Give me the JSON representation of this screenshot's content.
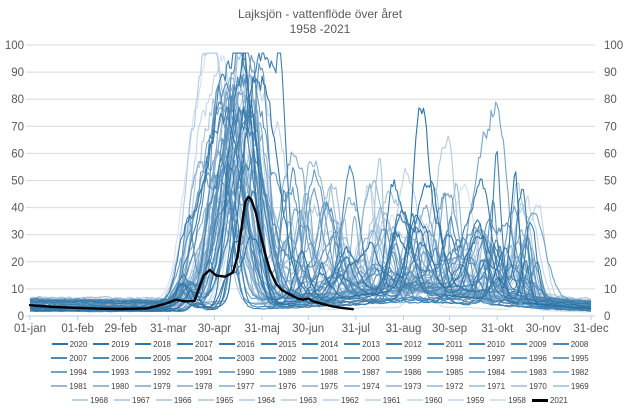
{
  "chart_data": {
    "type": "line",
    "title": "Lajksjön - vattenflöde över året",
    "subtitle": "1958 -2021",
    "xlabel": "",
    "ylabel": "",
    "ylim": [
      0,
      100
    ],
    "y_ticks": [
      0,
      10,
      20,
      30,
      40,
      50,
      60,
      70,
      80,
      90,
      100
    ],
    "dual_y_axis": true,
    "grid": "horizontal",
    "legend_position": "bottom",
    "x_tick_labels": [
      "01-jan",
      "01-feb",
      "29-feb",
      "31-mar",
      "30-apr",
      "31-maj",
      "30-jun",
      "31-jul",
      "31-aug",
      "30-sep",
      "31-okt",
      "30-nov",
      "31-dec"
    ],
    "x_tick_days": [
      0,
      31,
      59,
      90,
      120,
      151,
      181,
      212,
      243,
      273,
      304,
      334,
      365
    ],
    "x_range_days": [
      0,
      365
    ],
    "colors": {
      "grid": "#d9d9d9",
      "axis": "#b9cfe4",
      "text": "#595959",
      "legend_text": "#404040"
    },
    "color_scale": {
      "newest_year_color": "#2B72A4",
      "oldest_year_color": "#D3E1F1",
      "highlight_color": "#000000"
    },
    "legend_rows": [
      [
        2020,
        2019,
        2018,
        2017,
        2016,
        2015,
        2014,
        2013,
        2012,
        2011,
        2010,
        2009,
        2008
      ],
      [
        2007,
        2006,
        2005,
        2004,
        2003,
        2002,
        2001,
        2000,
        1999,
        1998,
        1997,
        1996,
        1995
      ],
      [
        1994,
        1993,
        1992,
        1991,
        1990,
        1989,
        1988,
        1987,
        1986,
        1985,
        1984,
        1983,
        1982
      ],
      [
        1981,
        1980,
        1979,
        1978,
        1977,
        1976,
        1975,
        1974,
        1973,
        1972,
        1971,
        1970,
        1969
      ],
      [
        1968,
        1967,
        1966,
        1965,
        1964,
        1963,
        1962,
        1961,
        1960,
        1959,
        1958,
        2021
      ]
    ],
    "highlight_series": {
      "name": "2021",
      "note": "Thick black line; record ends at 31-jul",
      "points": [
        [
          0,
          4
        ],
        [
          14,
          3.4
        ],
        [
          31,
          3
        ],
        [
          46,
          2.7
        ],
        [
          60,
          2.6
        ],
        [
          76,
          2.8
        ],
        [
          88,
          4.5
        ],
        [
          95,
          6
        ],
        [
          101,
          5.4
        ],
        [
          107,
          5.6
        ],
        [
          113,
          15
        ],
        [
          117,
          17
        ],
        [
          121,
          15
        ],
        [
          127,
          14.5
        ],
        [
          132,
          16
        ],
        [
          135,
          22
        ],
        [
          138,
          34
        ],
        [
          140,
          42
        ],
        [
          142,
          44
        ],
        [
          144,
          43
        ],
        [
          147,
          38
        ],
        [
          150,
          30
        ],
        [
          153,
          23
        ],
        [
          156,
          17
        ],
        [
          160,
          12
        ],
        [
          164,
          9.5
        ],
        [
          169,
          8
        ],
        [
          174,
          6.5
        ],
        [
          178,
          6
        ],
        [
          181,
          6.5
        ],
        [
          184,
          5.5
        ],
        [
          190,
          4.5
        ],
        [
          197,
          3.5
        ],
        [
          203,
          3
        ],
        [
          210,
          2.5
        ]
      ]
    },
    "background_series": {
      "years_range": [
        1958,
        2020
      ],
      "pattern": "winter baseline 1-8, spring flood peak 20-95 between late April and late May, summer and autumn rain spikes 5-60, recession toward 1-12 in December",
      "reconstruction": "procedural approximation seeded per year",
      "gen": {
        "winter_base": [
          1.5,
          7
        ],
        "pre_bump_day": [
          96,
          112
        ],
        "pre_bump_amp": [
          2,
          10
        ],
        "spring_day": [
          120,
          150
        ],
        "spring_amp": [
          22,
          92
        ],
        "spring_width": [
          4.5,
          13
        ],
        "autumn_count": [
          3,
          7
        ],
        "autumn_day": [
          162,
          332
        ],
        "autumn_amp": [
          5,
          55
        ],
        "autumn_width": [
          2.5,
          8
        ],
        "autumn_base_amp": [
          1.5,
          9
        ],
        "noise_scale": 0.12
      }
    }
  }
}
